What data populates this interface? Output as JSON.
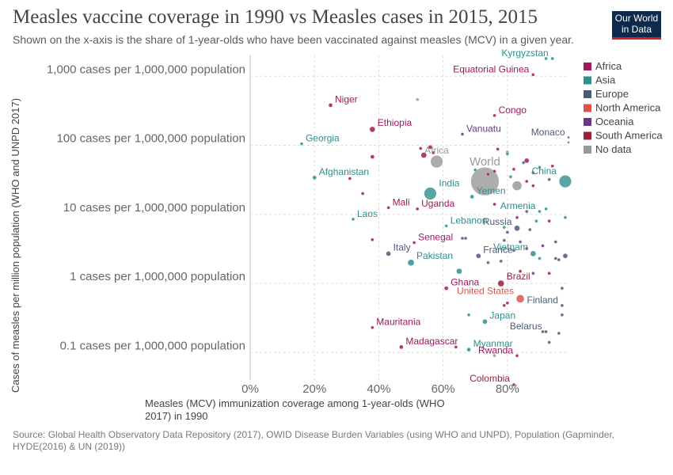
{
  "header": {
    "title": "Measles vaccine coverage in 1990 vs Measles cases in 2015, 2015",
    "subtitle": "Shown on the x-axis is the share of 1-year-olds who have been vaccinated against measles (MCV) in a given year.",
    "logo_line1": "Our World",
    "logo_line2": "in Data"
  },
  "footer": {
    "source": "Source: Global Health Observatory Data Repository (2017), OWID Disease Burden Variables (using WHO and UNPD), Population (Gapminder, HYDE(2016) & UN (2019))"
  },
  "colors": {
    "Africa": "#a2185b",
    "Asia": "#2f8f8c",
    "Europe": "#4c5a79",
    "North America": "#e0534d",
    "Oceania": "#6b3683",
    "South America": "#9a2036",
    "No data": "#999999"
  },
  "chart_data": {
    "type": "scatter",
    "xlabel_line1": "Measles (MCV) immunization coverage among 1-year-olds (WHO",
    "xlabel_line2": "2017) in 1990",
    "ylabel": "Cases of measles per million population (WHO and UNPD 2017)",
    "xlim": [
      0,
      99
    ],
    "ylim": [
      0.04,
      2000
    ],
    "y_scale": "log",
    "grid": true,
    "legend_position": "right",
    "xticks": [
      {
        "value": 0,
        "label": "0%"
      },
      {
        "value": 20,
        "label": "20%"
      },
      {
        "value": 40,
        "label": "40%"
      },
      {
        "value": 60,
        "label": "60%"
      },
      {
        "value": 80,
        "label": "80%"
      }
    ],
    "yticks": [
      {
        "value": 0.1,
        "label": "0.1 cases per 1,000,000 population"
      },
      {
        "value": 1,
        "label": "1 cases per 1,000,000 population"
      },
      {
        "value": 10,
        "label": "10 cases per 1,000,000 population"
      },
      {
        "value": 100,
        "label": "100 cases per 1,000,000 population"
      },
      {
        "value": 1000,
        "label": "1,000 cases per 1,000,000 population"
      }
    ],
    "legend": [
      "Africa",
      "Asia",
      "Europe",
      "North America",
      "Oceania",
      "South America",
      "No data"
    ],
    "labeled_points": [
      {
        "name": "Kyrgyzstan",
        "region": "Asia",
        "x": 94,
        "y": 3000,
        "r": 2
      },
      {
        "name": "Equatorial Guinea",
        "region": "Africa",
        "x": 88,
        "y": 1050,
        "r": 2
      },
      {
        "name": "Niger",
        "region": "Africa",
        "x": 25,
        "y": 380,
        "r": 2.5
      },
      {
        "name": "Congo",
        "region": "Africa",
        "x": 76,
        "y": 270,
        "r": 2
      },
      {
        "name": "Ethiopia",
        "region": "Africa",
        "x": 38,
        "y": 170,
        "r": 3.5
      },
      {
        "name": "Vanuatu",
        "region": "Oceania",
        "x": 66,
        "y": 145,
        "r": 2
      },
      {
        "name": "Monaco",
        "region": "Europe",
        "x": 99,
        "y": 130,
        "r": 1.5
      },
      {
        "name": "Georgia",
        "region": "Asia",
        "x": 16,
        "y": 105,
        "r": 2
      },
      {
        "name": "Africa",
        "region": "No data",
        "x": 58,
        "y": 58,
        "r": 8
      },
      {
        "name": "World",
        "region": "No data",
        "x": 73,
        "y": 30,
        "r": 18
      },
      {
        "name": "China",
        "region": "Asia",
        "x": 98,
        "y": 30,
        "r": 8
      },
      {
        "name": "Afghanistan",
        "region": "Asia",
        "x": 20,
        "y": 34,
        "r": 2.5
      },
      {
        "name": "India",
        "region": "Asia",
        "x": 56,
        "y": 20,
        "r": 8
      },
      {
        "name": "Yemen",
        "region": "Asia",
        "x": 69,
        "y": 18,
        "r": 2.5
      },
      {
        "name": "Mali",
        "region": "Africa",
        "x": 43,
        "y": 12.5,
        "r": 2
      },
      {
        "name": "Uganda",
        "region": "Africa",
        "x": 52,
        "y": 12,
        "r": 2
      },
      {
        "name": "Armenia",
        "region": "Asia",
        "x": 90,
        "y": 11,
        "r": 2
      },
      {
        "name": "Laos",
        "region": "Asia",
        "x": 32,
        "y": 8.5,
        "r": 2
      },
      {
        "name": "Lebanon",
        "region": "Asia",
        "x": 61,
        "y": 6.8,
        "r": 2
      },
      {
        "name": "Russia",
        "region": "Europe",
        "x": 83,
        "y": 6.3,
        "r": 3.5
      },
      {
        "name": "Senegal",
        "region": "Africa",
        "x": 51,
        "y": 3.9,
        "r": 2
      },
      {
        "name": "Italy",
        "region": "Europe",
        "x": 43,
        "y": 2.7,
        "r": 3
      },
      {
        "name": "France",
        "region": "Europe",
        "x": 71,
        "y": 2.5,
        "r": 3
      },
      {
        "name": "Vietnam",
        "region": "Asia",
        "x": 88,
        "y": 2.7,
        "r": 3.5
      },
      {
        "name": "Pakistan",
        "region": "Asia",
        "x": 50,
        "y": 2.0,
        "r": 4
      },
      {
        "name": "Brazil",
        "region": "South America",
        "x": 78,
        "y": 1.0,
        "r": 4
      },
      {
        "name": "Ghana",
        "region": "Africa",
        "x": 61,
        "y": 0.85,
        "r": 2.5
      },
      {
        "name": "United States",
        "region": "North America",
        "x": 84,
        "y": 0.6,
        "r": 5
      },
      {
        "name": "Finland",
        "region": "Europe",
        "x": 97,
        "y": 0.48,
        "r": 2
      },
      {
        "name": "Japan",
        "region": "Asia",
        "x": 73,
        "y": 0.28,
        "r": 3
      },
      {
        "name": "Mauritania",
        "region": "Africa",
        "x": 38,
        "y": 0.23,
        "r": 2
      },
      {
        "name": "Belarus",
        "region": "Europe",
        "x": 92,
        "y": 0.2,
        "r": 2
      },
      {
        "name": "Madagascar",
        "region": "Africa",
        "x": 47,
        "y": 0.12,
        "r": 2.5
      },
      {
        "name": "Myanmar",
        "region": "Asia",
        "x": 68,
        "y": 0.11,
        "r": 2.5
      },
      {
        "name": "Rwanda",
        "region": "Africa",
        "x": 83,
        "y": 0.09,
        "r": 2
      },
      {
        "name": "Colombia",
        "region": "South America",
        "x": 82,
        "y": 0.012,
        "r": 2
      }
    ],
    "other_points": [
      {
        "region": "Asia",
        "x": 92,
        "y": 5200,
        "r": 2
      },
      {
        "region": "No data",
        "x": 52,
        "y": 460,
        "r": 2
      },
      {
        "region": "Asia",
        "x": 99,
        "y": 110,
        "r": 1.5
      },
      {
        "region": "Africa",
        "x": 38,
        "y": 68,
        "r": 2.5
      },
      {
        "region": "Africa",
        "x": 53,
        "y": 90,
        "r": 2
      },
      {
        "region": "Africa",
        "x": 56,
        "y": 94,
        "r": 2.5
      },
      {
        "region": "Africa",
        "x": 54,
        "y": 72,
        "r": 3.5
      },
      {
        "region": "Africa",
        "x": 57,
        "y": 78,
        "r": 2
      },
      {
        "region": "No data",
        "x": 80,
        "y": 80,
        "r": 2
      },
      {
        "region": "Asia",
        "x": 80,
        "y": 75,
        "r": 2
      },
      {
        "region": "Africa",
        "x": 77,
        "y": 88,
        "r": 2
      },
      {
        "region": "Africa",
        "x": 86,
        "y": 60,
        "r": 3
      },
      {
        "region": "Europe",
        "x": 85,
        "y": 56,
        "r": 2
      },
      {
        "region": "Africa",
        "x": 82,
        "y": 45,
        "r": 2
      },
      {
        "region": "Europe",
        "x": 88,
        "y": 40,
        "r": 2
      },
      {
        "region": "Asia",
        "x": 90,
        "y": 48,
        "r": 2
      },
      {
        "region": "Africa",
        "x": 94,
        "y": 50,
        "r": 2
      },
      {
        "region": "No data",
        "x": 83,
        "y": 26,
        "r": 6
      },
      {
        "region": "Asia",
        "x": 81,
        "y": 35,
        "r": 2
      },
      {
        "region": "Africa",
        "x": 86,
        "y": 30,
        "r": 2
      },
      {
        "region": "Africa",
        "x": 88,
        "y": 26,
        "r": 2
      },
      {
        "region": "Europe",
        "x": 93,
        "y": 32,
        "r": 2
      },
      {
        "region": "Asia",
        "x": 70,
        "y": 44,
        "r": 2
      },
      {
        "region": "Africa",
        "x": 74,
        "y": 38,
        "r": 2
      },
      {
        "region": "Africa",
        "x": 76,
        "y": 42,
        "r": 2
      },
      {
        "region": "Africa",
        "x": 31,
        "y": 33,
        "r": 2
      },
      {
        "region": "Africa",
        "x": 35,
        "y": 20,
        "r": 2
      },
      {
        "region": "Africa",
        "x": 76,
        "y": 14,
        "r": 2
      },
      {
        "region": "Europe",
        "x": 86,
        "y": 11,
        "r": 2
      },
      {
        "region": "Asia",
        "x": 92,
        "y": 12,
        "r": 2
      },
      {
        "region": "Africa",
        "x": 83,
        "y": 9,
        "r": 2
      },
      {
        "region": "Asia",
        "x": 89,
        "y": 8,
        "r": 2
      },
      {
        "region": "Africa",
        "x": 93,
        "y": 8,
        "r": 2
      },
      {
        "region": "Asia",
        "x": 98,
        "y": 9,
        "r": 2
      },
      {
        "region": "Asia",
        "x": 79,
        "y": 6.5,
        "r": 2
      },
      {
        "region": "Europe",
        "x": 87,
        "y": 6,
        "r": 2
      },
      {
        "region": "Europe",
        "x": 80,
        "y": 5.5,
        "r": 2
      },
      {
        "region": "Europe",
        "x": 66,
        "y": 4.5,
        "r": 2
      },
      {
        "region": "Europe",
        "x": 67,
        "y": 4.5,
        "r": 2
      },
      {
        "region": "Europe",
        "x": 79,
        "y": 4.2,
        "r": 2
      },
      {
        "region": "Europe",
        "x": 84,
        "y": 4.0,
        "r": 2
      },
      {
        "region": "Oceania",
        "x": 91,
        "y": 3.5,
        "r": 2
      },
      {
        "region": "Europe",
        "x": 95,
        "y": 4,
        "r": 2
      },
      {
        "region": "Africa",
        "x": 38,
        "y": 4.3,
        "r": 2
      },
      {
        "region": "Europe",
        "x": 82,
        "y": 3.0,
        "r": 2
      },
      {
        "region": "Oceania",
        "x": 86,
        "y": 3.2,
        "r": 2
      },
      {
        "region": "Asia",
        "x": 90,
        "y": 2.3,
        "r": 2
      },
      {
        "region": "Europe",
        "x": 95,
        "y": 2.3,
        "r": 2
      },
      {
        "region": "Europe",
        "x": 96,
        "y": 2.2,
        "r": 2
      },
      {
        "region": "Europe",
        "x": 98,
        "y": 2.5,
        "r": 3
      },
      {
        "region": "Europe",
        "x": 74,
        "y": 2.0,
        "r": 2
      },
      {
        "region": "Europe",
        "x": 78,
        "y": 2.1,
        "r": 2
      },
      {
        "region": "South America",
        "x": 84,
        "y": 1.5,
        "r": 2
      },
      {
        "region": "Oceania",
        "x": 88,
        "y": 1.4,
        "r": 2
      },
      {
        "region": "South America",
        "x": 93,
        "y": 1.4,
        "r": 2
      },
      {
        "region": "Asia",
        "x": 65,
        "y": 1.5,
        "r": 3.5
      },
      {
        "region": "Europe",
        "x": 97,
        "y": 0.85,
        "r": 2
      },
      {
        "region": "Africa",
        "x": 80,
        "y": 0.52,
        "r": 2
      },
      {
        "region": "Africa",
        "x": 79,
        "y": 0.48,
        "r": 2
      },
      {
        "region": "Asia",
        "x": 68,
        "y": 0.35,
        "r": 2
      },
      {
        "region": "Europe",
        "x": 97,
        "y": 0.35,
        "r": 2
      },
      {
        "region": "Europe",
        "x": 91,
        "y": 0.2,
        "r": 2
      },
      {
        "region": "Europe",
        "x": 96,
        "y": 0.19,
        "r": 2
      },
      {
        "region": "Europe",
        "x": 93,
        "y": 0.14,
        "r": 2
      },
      {
        "region": "Africa",
        "x": 64,
        "y": 0.12,
        "r": 2
      },
      {
        "region": "No data",
        "x": 76,
        "y": 0.09,
        "r": 2
      }
    ]
  }
}
